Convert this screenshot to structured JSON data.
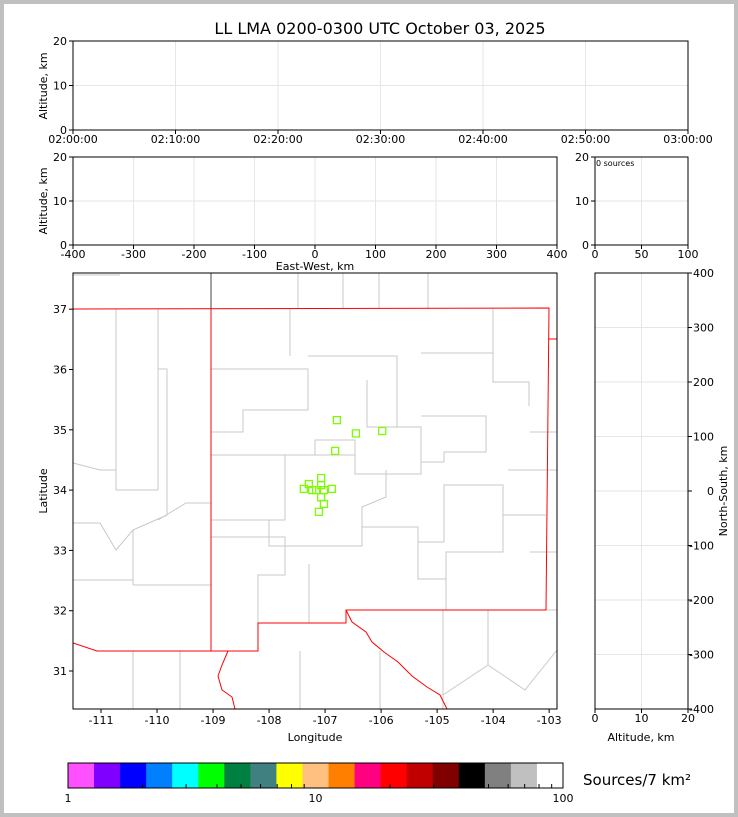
{
  "title": "LL LMA 0200-0300 UTC October 03, 2025",
  "colors": {
    "grid": "#e6e6e6",
    "county": "#c8c8c8",
    "state": "#ff0000",
    "points": "#7cfc00"
  },
  "chart_data": [
    {
      "type": "scatter",
      "panel": "altitude-time",
      "ylabel": "Altitude, km",
      "ylim": [
        0,
        20
      ],
      "yticks": [
        "0",
        "10",
        "20"
      ],
      "xticks": [
        "02:00:00",
        "02:10:00",
        "02:20:00",
        "02:30:00",
        "02:40:00",
        "02:50:00",
        "03:00:00"
      ],
      "grid": true,
      "points": []
    },
    {
      "type": "scatter",
      "panel": "altitude-eastwest",
      "ylabel": "Altitude, km",
      "xlabel": "East-West, km",
      "xlim": [
        -400,
        400
      ],
      "ylim": [
        0,
        20
      ],
      "xticks": [
        "-400",
        "-300",
        "-200",
        "-100",
        "0",
        "100",
        "200",
        "300",
        "400"
      ],
      "yticks": [
        "0",
        "10",
        "20"
      ],
      "grid": true,
      "points": []
    },
    {
      "type": "histogram",
      "panel": "altitude-histogram",
      "annotation": "0 sources",
      "xlim": [
        0,
        100
      ],
      "ylim": [
        0,
        20
      ],
      "xticks": [
        "0",
        "50",
        "100"
      ],
      "yticks": [
        "0",
        "10",
        "20"
      ],
      "grid": true
    },
    {
      "type": "scatter",
      "panel": "plan-view-map",
      "xlabel": "Longitude",
      "ylabel": "Latitude",
      "xlim": [
        -111.5,
        -102.86
      ],
      "ylim": [
        30.37,
        37.6
      ],
      "xticks": [
        "-111",
        "-110",
        "-109",
        "-108",
        "-107",
        "-106",
        "-105",
        "-104",
        "-103"
      ],
      "yticks": [
        "31",
        "32",
        "33",
        "34",
        "35",
        "36",
        "37"
      ],
      "points": [
        [
          -106.79,
          35.16
        ],
        [
          -106.45,
          34.94
        ],
        [
          -105.98,
          34.98
        ],
        [
          -106.82,
          34.65
        ],
        [
          -107.07,
          34.2
        ],
        [
          -107.29,
          34.1
        ],
        [
          -107.07,
          34.08
        ],
        [
          -107.38,
          34.02
        ],
        [
          -107.23,
          34.0
        ],
        [
          -107.16,
          34.0
        ],
        [
          -107.02,
          34.0
        ],
        [
          -106.88,
          34.02
        ],
        [
          -107.07,
          33.88
        ],
        [
          -107.02,
          33.77
        ],
        [
          -107.11,
          33.64
        ]
      ]
    },
    {
      "type": "scatter",
      "panel": "northsouth-altitude",
      "xlabel": "Altitude, km",
      "ylabel": "North-South, km",
      "xlim": [
        0,
        20
      ],
      "ylim": [
        -400,
        400
      ],
      "xticks": [
        "0",
        "10",
        "20"
      ],
      "yticks": [
        "-400",
        "-300",
        "-200",
        "-100",
        "0",
        "100",
        "200",
        "300",
        "400"
      ],
      "grid": true,
      "points": []
    }
  ],
  "colorbar": {
    "label": "Sources/7 km²",
    "ticks": [
      "1",
      "10",
      "100"
    ],
    "scale": "log",
    "range": [
      1,
      100
    ],
    "colors": [
      "#ff50ff",
      "#8000ff",
      "#0000ff",
      "#0080ff",
      "#00ffff",
      "#00ff00",
      "#008040",
      "#408080",
      "#ffff00",
      "#ffc080",
      "#ff8000",
      "#ff0080",
      "#ff0000",
      "#c00000",
      "#800000",
      "#000000",
      "#808080",
      "#c0c0c0",
      "#ffffff"
    ]
  }
}
